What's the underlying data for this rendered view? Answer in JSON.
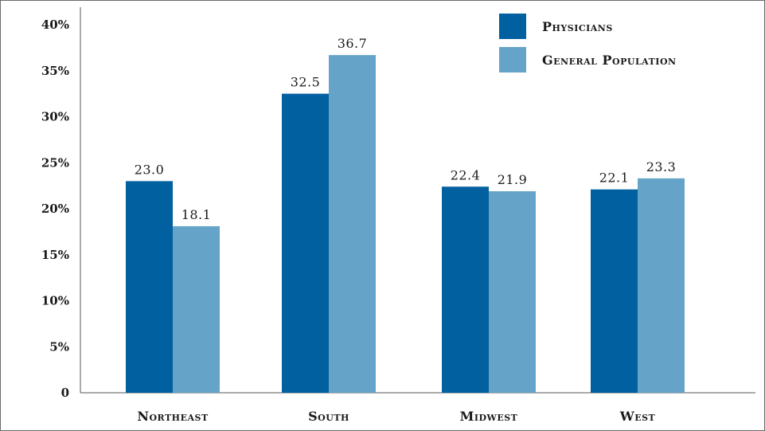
{
  "chart_data": {
    "type": "bar",
    "categories": [
      "Northeast",
      "South",
      "Midwest",
      "West"
    ],
    "series": [
      {
        "name": "Physicians",
        "values": [
          23.0,
          32.5,
          22.4,
          22.1
        ],
        "color": "#0060a0"
      },
      {
        "name": "General Population",
        "values": [
          18.1,
          36.7,
          21.9,
          23.3
        ],
        "color": "#66a3c8"
      }
    ],
    "data_labels": [
      [
        "23.0",
        "32.5",
        "22.4",
        "22.1"
      ],
      [
        "18.1",
        "36.7",
        "21.9",
        "23.3"
      ]
    ],
    "yticks": [
      "0",
      "5%",
      "10%",
      "15%",
      "20%",
      "25%",
      "30%",
      "35%",
      "40%"
    ],
    "ylim": [
      0,
      40
    ],
    "grid": false,
    "legend_position": "top-right"
  }
}
